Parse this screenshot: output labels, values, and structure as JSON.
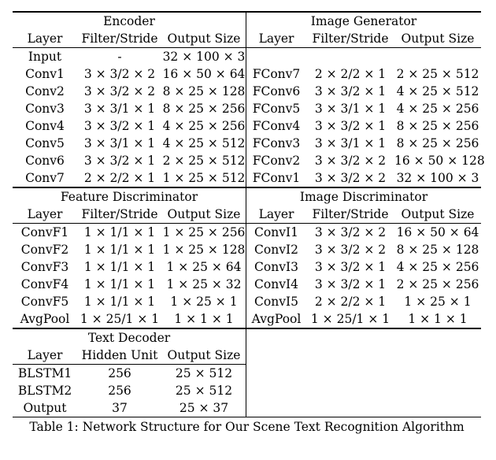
{
  "sections": [
    {
      "left": {
        "title": "Encoder",
        "headers": [
          "Layer",
          "Filter/Stride",
          "Output Size"
        ],
        "rows": [
          [
            "Input",
            "-",
            "32 × 100 × 3"
          ],
          [
            "Conv1",
            "3 × 3/2 × 2",
            "16 × 50 × 64"
          ],
          [
            "Conv2",
            "3 × 3/2 × 2",
            "8 × 25 × 128"
          ],
          [
            "Conv3",
            "3 × 3/1 × 1",
            "8 × 25 × 256"
          ],
          [
            "Conv4",
            "3 × 3/2 × 1",
            "4 × 25 × 256"
          ],
          [
            "Conv5",
            "3 × 3/1 × 1",
            "4 × 25 × 512"
          ],
          [
            "Conv6",
            "3 × 3/2 × 1",
            "2 × 25 × 512"
          ],
          [
            "Conv7",
            "2 × 2/2 × 1",
            "1 × 25 × 512"
          ]
        ]
      },
      "right": {
        "title": "Image Generator",
        "headers": [
          "Layer",
          "Filter/Stride",
          "Output Size"
        ],
        "rows": [
          [
            "",
            "",
            ""
          ],
          [
            "FConv7",
            "2 × 2/2 × 1",
            "2 × 25 × 512"
          ],
          [
            "FConv6",
            "3 × 3/2 × 1",
            "4 × 25 × 512"
          ],
          [
            "FConv5",
            "3 × 3/1 × 1",
            "4 × 25 × 256"
          ],
          [
            "FConv4",
            "3 × 3/2 × 1",
            "8 × 25 × 256"
          ],
          [
            "FConv3",
            "3 × 3/1 × 1",
            "8 × 25 × 256"
          ],
          [
            "FConv2",
            "3 × 3/2 × 2",
            "16 × 50 × 128"
          ],
          [
            "FConv1",
            "3 × 3/2 × 2",
            "32 × 100 × 3"
          ]
        ]
      }
    },
    {
      "left": {
        "title": "Feature Discriminator",
        "headers": [
          "Layer",
          "Filter/Stride",
          "Output Size"
        ],
        "rows": [
          [
            "ConvF1",
            "1 × 1/1 × 1",
            "1 × 25 × 256"
          ],
          [
            "ConvF2",
            "1 × 1/1 × 1",
            "1 × 25 × 128"
          ],
          [
            "ConvF3",
            "1 × 1/1 × 1",
            "1 × 25 × 64"
          ],
          [
            "ConvF4",
            "1 × 1/1 × 1",
            "1 × 25 × 32"
          ],
          [
            "ConvF5",
            "1 × 1/1 × 1",
            "1 × 25 × 1"
          ],
          [
            "AvgPool",
            "1 × 25/1 × 1",
            "1 × 1 × 1"
          ]
        ]
      },
      "right": {
        "title": "Image Discriminator",
        "headers": [
          "Layer",
          "Filter/Stride",
          "Output Size"
        ],
        "rows": [
          [
            "ConvI1",
            "3 × 3/2 × 2",
            "16 × 50 × 64"
          ],
          [
            "ConvI2",
            "3 × 3/2 × 2",
            "8 × 25 × 128"
          ],
          [
            "ConvI3",
            "3 × 3/2 × 1",
            "4 × 25 × 256"
          ],
          [
            "ConvI4",
            "3 × 3/2 × 1",
            "2 × 25 × 256"
          ],
          [
            "ConvI5",
            "2 × 2/2 × 1",
            "1 × 25 × 1"
          ],
          [
            "AvgPool",
            "1 × 25/1 × 1",
            "1 × 1 × 1"
          ]
        ]
      }
    },
    {
      "left": {
        "title": "Text Decoder",
        "headers": [
          "Layer",
          "Hidden Unit",
          "Output Size"
        ],
        "rows": [
          [
            "BLSTM1",
            "256",
            "25 × 512"
          ],
          [
            "BLSTM2",
            "256",
            "25 × 512"
          ],
          [
            "Output",
            "37",
            "25 × 37"
          ]
        ]
      },
      "right": null
    }
  ],
  "caption": "Table 1: Network Structure for Our Scene Text Recognition Algorithm"
}
